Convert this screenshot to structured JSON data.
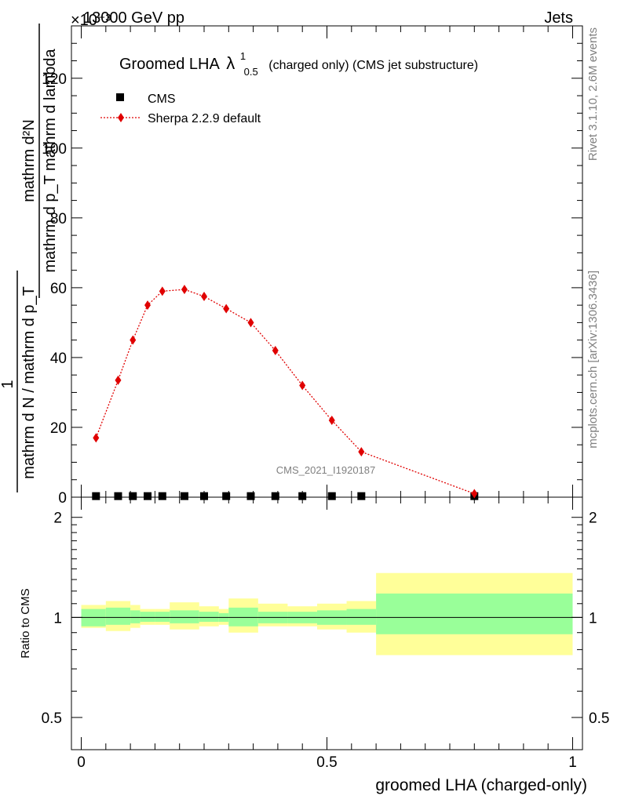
{
  "header": {
    "energy": "13000 GeV pp",
    "category": "Jets",
    "exponent_label": "×10⁻³"
  },
  "chart_data": {
    "type": "scatter",
    "title_main": "Groomed LHA",
    "title_symbol": "λ",
    "title_sup": "1",
    "title_sub": "0.5",
    "title_rest": "(charged only) (CMS jet substructure)",
    "xlabel": "groomed LHA (charged-only)",
    "ylabel_main_numerator": "mathrm d²N",
    "ylabel_main_denominator": "mathrm d p_T mathrm d lambda",
    "ylabel_pre_numerator": "1",
    "ylabel_pre_denominator": "mathrm d N / mathrm d p_T",
    "ylabel_ratio": "Ratio to CMS",
    "side_label_top": "Rivet 3.1.10,  2.6M events",
    "side_label_bottom": "mcplots.cern.ch [arXiv:1306.3436]",
    "watermark": "CMS_2021_I1920187",
    "xlim": [
      -0.02,
      1.02
    ],
    "ylim_main": [
      0,
      135
    ],
    "ylim_ratio": [
      0.4,
      2.3
    ],
    "x_ticks": [
      "0",
      "0.5",
      "1"
    ],
    "y_ticks_main": [
      "0",
      "20",
      "40",
      "60",
      "80",
      "100",
      "120"
    ],
    "y_ticks_ratio": [
      "0.5",
      "1",
      "2"
    ],
    "legend": [
      {
        "name": "CMS",
        "marker": "square",
        "color": "#000000"
      },
      {
        "name": "Sherpa 2.2.9 default",
        "marker": "diamond",
        "color": "#e00000"
      }
    ],
    "bins": [
      0,
      0.05,
      0.1,
      0.12,
      0.15,
      0.18,
      0.24,
      0.28,
      0.3,
      0.36,
      0.42,
      0.48,
      0.54,
      0.6,
      1.0
    ],
    "series": [
      {
        "name": "CMS",
        "x": [
          0.03,
          0.075,
          0.105,
          0.135,
          0.165,
          0.21,
          0.25,
          0.295,
          0.345,
          0.395,
          0.45,
          0.51,
          0.57,
          0.8
        ],
        "y": [
          0.3,
          0.3,
          0.3,
          0.3,
          0.3,
          0.3,
          0.3,
          0.3,
          0.3,
          0.3,
          0.3,
          0.3,
          0.3,
          0.3
        ]
      },
      {
        "name": "Sherpa 2.2.9 default",
        "x": [
          0.03,
          0.075,
          0.105,
          0.135,
          0.165,
          0.21,
          0.25,
          0.295,
          0.345,
          0.395,
          0.45,
          0.51,
          0.57,
          0.8
        ],
        "y": [
          17,
          33.5,
          45,
          55,
          59,
          59.5,
          57.5,
          54,
          50,
          42,
          32,
          22,
          13,
          1
        ]
      }
    ],
    "ratio_bands": {
      "inner": [
        [
          0.94,
          1.06
        ],
        [
          0.95,
          1.07
        ],
        [
          0.96,
          1.05
        ],
        [
          0.97,
          1.04
        ],
        [
          0.97,
          1.04
        ],
        [
          0.96,
          1.05
        ],
        [
          0.97,
          1.04
        ],
        [
          0.97,
          1.03
        ],
        [
          0.94,
          1.07
        ],
        [
          0.96,
          1.04
        ],
        [
          0.96,
          1.04
        ],
        [
          0.95,
          1.05
        ],
        [
          0.95,
          1.06
        ],
        [
          0.89,
          1.18
        ]
      ],
      "outer": [
        [
          0.93,
          1.09
        ],
        [
          0.91,
          1.12
        ],
        [
          0.93,
          1.09
        ],
        [
          0.95,
          1.06
        ],
        [
          0.95,
          1.06
        ],
        [
          0.92,
          1.11
        ],
        [
          0.94,
          1.08
        ],
        [
          0.95,
          1.06
        ],
        [
          0.9,
          1.14
        ],
        [
          0.94,
          1.1
        ],
        [
          0.94,
          1.08
        ],
        [
          0.92,
          1.1
        ],
        [
          0.9,
          1.12
        ],
        [
          0.77,
          1.36
        ]
      ]
    }
  }
}
